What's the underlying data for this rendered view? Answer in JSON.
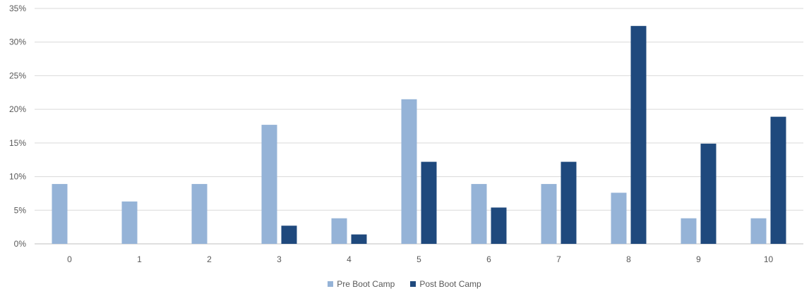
{
  "chart_data": {
    "type": "bar",
    "title": "",
    "xlabel": "",
    "ylabel": "",
    "categories": [
      "0",
      "1",
      "2",
      "3",
      "4",
      "5",
      "6",
      "7",
      "8",
      "9",
      "10"
    ],
    "series": [
      {
        "name": "Pre Boot Camp",
        "color": "#95b3d7",
        "values": [
          8.9,
          6.3,
          8.9,
          17.7,
          3.8,
          21.5,
          8.9,
          8.9,
          7.6,
          3.8,
          3.8
        ]
      },
      {
        "name": "Post Boot Camp",
        "color": "#1f497d",
        "values": [
          0,
          0,
          0,
          2.7,
          1.4,
          12.2,
          5.4,
          12.2,
          32.4,
          14.9,
          18.9
        ]
      }
    ],
    "ylim": [
      0,
      35
    ],
    "yticks": [
      "0%",
      "5%",
      "10%",
      "15%",
      "20%",
      "25%",
      "30%",
      "35%"
    ],
    "ytick_values": [
      0,
      5,
      10,
      15,
      20,
      25,
      30,
      35
    ],
    "grid": true,
    "legend_position": "bottom"
  }
}
